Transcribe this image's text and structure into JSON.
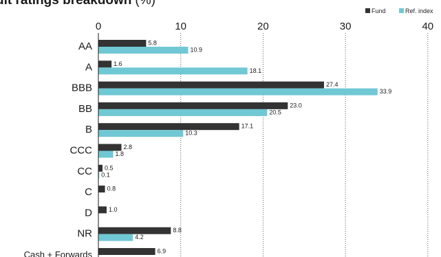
{
  "chart_data": {
    "type": "bar",
    "orientation": "horizontal",
    "title": "dit ratings breakdown",
    "title_unit": "(%)",
    "categories": [
      "AA",
      "A",
      "BBB",
      "BB",
      "B",
      "CCC",
      "CC",
      "C",
      "D",
      "NR",
      "Cash + Forwards"
    ],
    "series": [
      {
        "name": "Fund",
        "color": "#333333",
        "values": [
          5.8,
          1.6,
          27.4,
          23.0,
          17.1,
          2.8,
          0.5,
          0.8,
          1.0,
          8.8,
          6.9
        ],
        "labels": [
          "5.8",
          "1.6",
          "27.4",
          "23.0",
          "17.1",
          "2.8",
          "0.5",
          "0.8",
          "1.0",
          "8.8",
          "6.9"
        ]
      },
      {
        "name": "Ref. index",
        "color": "#70c8d4",
        "values": [
          10.9,
          18.1,
          33.9,
          20.5,
          10.3,
          1.8,
          0.1,
          null,
          null,
          4.2,
          null
        ],
        "labels": [
          "10.9",
          "18.1",
          "33.9",
          "20.5",
          "10.3",
          "1.8",
          "0.1",
          "",
          "",
          "4.2",
          ""
        ]
      }
    ],
    "xlim": [
      0,
      40
    ],
    "x_ticks": [
      "0",
      "10",
      "20",
      "30",
      "40"
    ],
    "x_tick_values": [
      0,
      10,
      20,
      30,
      40
    ],
    "axis_position": "top",
    "grid": "dotted-vertical",
    "legend_position": "top-right"
  }
}
